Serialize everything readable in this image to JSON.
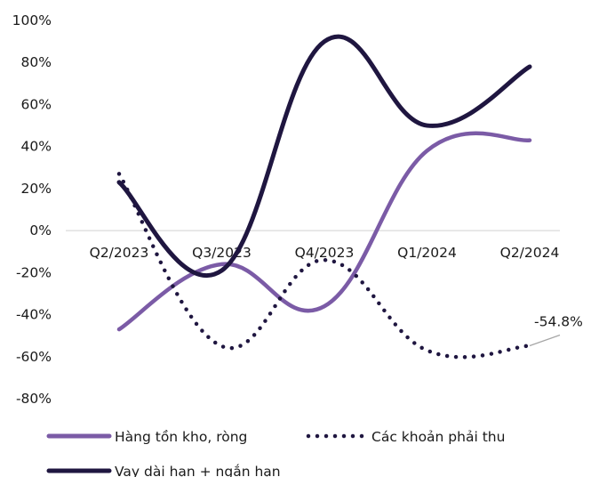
{
  "chart_data": {
    "type": "line",
    "categories": [
      "Q2/2023",
      "Q3/2023",
      "Q4/2023",
      "Q1/2024",
      "Q2/2024"
    ],
    "y_ticks": [
      "100%",
      "80%",
      "60%",
      "40%",
      "20%",
      "0%",
      "-20%",
      "-40%",
      "-60%",
      "-80%"
    ],
    "ylim": [
      -80,
      100
    ],
    "grid": false,
    "legend_position": "bottom",
    "series": [
      {
        "name": "Hàng tồn kho, ròng",
        "values": [
          -47,
          -16,
          -36,
          38,
          43
        ],
        "color": "#7b5ba6",
        "style": "solid"
      },
      {
        "name": "Các khoản phải thu",
        "values": [
          27,
          -55,
          -14,
          -57,
          -54.8
        ],
        "color": "#1f1640",
        "style": "dotted"
      },
      {
        "name": "Vay dài hạn + ngắn hạn",
        "values": [
          23,
          -19,
          90,
          50,
          78
        ],
        "color": "#1f1640",
        "style": "solid"
      }
    ],
    "annotations": [
      {
        "text": "-54.8%",
        "series": 1,
        "point": 4
      }
    ]
  }
}
